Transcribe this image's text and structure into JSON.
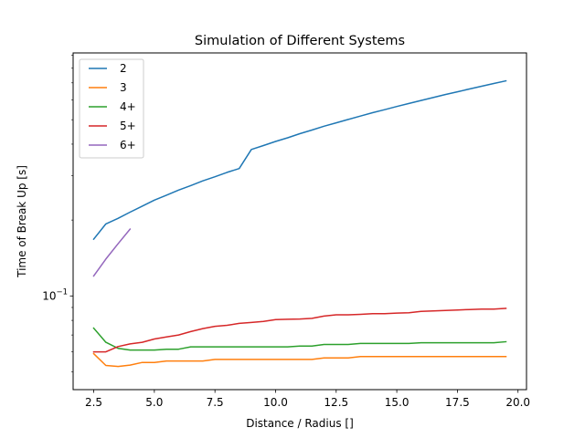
{
  "chart_data": {
    "type": "line",
    "title": "Simulation of Different Systems",
    "xlabel": "Distance / Radius []",
    "ylabel": "Time of Break Up [s]",
    "xlim": [
      1.65,
      20.35
    ],
    "ylim": [
      0.0425,
      0.92
    ],
    "yscale": "log",
    "grid": false,
    "legend_position": "top-left",
    "xticks": [
      2.5,
      5.0,
      7.5,
      10.0,
      12.5,
      15.0,
      17.5,
      20.0
    ],
    "xtick_labels": [
      "2.5",
      "5.0",
      "7.5",
      "10.0",
      "12.5",
      "15.0",
      "17.5",
      "20.0"
    ],
    "yticks_major": [
      {
        "value": 0.1,
        "base": "10",
        "exponent": "−1"
      }
    ],
    "yticks_minor": [
      0.05,
      0.06,
      0.07,
      0.08,
      0.09,
      0.2,
      0.3,
      0.4,
      0.5,
      0.6,
      0.7,
      0.8,
      0.9
    ],
    "series": [
      {
        "name": "2",
        "color": "#1f77b4",
        "x": [
          2.5,
          3.0,
          3.5,
          4.0,
          4.5,
          5.0,
          5.5,
          6.0,
          6.5,
          7.0,
          7.5,
          8.0,
          8.5,
          9.0,
          9.5,
          10.0,
          10.5,
          11.0,
          11.5,
          12.0,
          12.5,
          13.0,
          13.5,
          14.0,
          14.5,
          15.0,
          15.5,
          16.0,
          16.5,
          17.0,
          17.5,
          18.0,
          18.5,
          19.0,
          19.5
        ],
        "y": [
          0.168,
          0.193,
          0.203,
          0.215,
          0.227,
          0.24,
          0.251,
          0.263,
          0.274,
          0.286,
          0.297,
          0.309,
          0.32,
          0.381,
          0.395,
          0.41,
          0.424,
          0.44,
          0.455,
          0.471,
          0.486,
          0.501,
          0.517,
          0.533,
          0.548,
          0.564,
          0.58,
          0.596,
          0.612,
          0.629,
          0.645,
          0.662,
          0.679,
          0.696,
          0.713
        ]
      },
      {
        "name": "3",
        "color": "#ff7f0e",
        "x": [
          2.5,
          3.0,
          3.5,
          4.0,
          4.5,
          5.0,
          5.5,
          6.0,
          6.5,
          7.0,
          7.5,
          8.0,
          8.5,
          9.0,
          9.5,
          10.0,
          10.5,
          11.0,
          11.5,
          12.0,
          12.5,
          13.0,
          13.5,
          14.0,
          14.5,
          15.0,
          15.5,
          16.0,
          16.5,
          17.0,
          17.5,
          18.0,
          18.5,
          19.0,
          19.5
        ],
        "y": [
          0.059,
          0.053,
          0.0525,
          0.0532,
          0.0545,
          0.0545,
          0.0552,
          0.0552,
          0.0552,
          0.0552,
          0.056,
          0.056,
          0.056,
          0.056,
          0.056,
          0.056,
          0.056,
          0.056,
          0.056,
          0.0568,
          0.0568,
          0.0568,
          0.0575,
          0.0575,
          0.0575,
          0.0575,
          0.0575,
          0.0575,
          0.0575,
          0.0575,
          0.0575,
          0.0575,
          0.0575,
          0.0575,
          0.0575
        ]
      },
      {
        "name": "4+",
        "color": "#2ca02c",
        "x": [
          2.5,
          3.0,
          3.5,
          4.0,
          4.5,
          5.0,
          5.5,
          6.0,
          6.5,
          7.0,
          7.5,
          8.0,
          8.5,
          9.0,
          9.5,
          10.0,
          10.5,
          11.0,
          11.5,
          12.0,
          12.5,
          13.0,
          13.5,
          14.0,
          14.5,
          15.0,
          15.5,
          16.0,
          16.5,
          17.0,
          17.5,
          18.0,
          18.5,
          19.0,
          19.5
        ],
        "y": [
          0.0745,
          0.0655,
          0.062,
          0.061,
          0.061,
          0.061,
          0.0615,
          0.0615,
          0.0628,
          0.0628,
          0.0628,
          0.0628,
          0.0628,
          0.0628,
          0.0628,
          0.0628,
          0.0628,
          0.0633,
          0.0633,
          0.0642,
          0.0642,
          0.0642,
          0.0648,
          0.0648,
          0.0648,
          0.0648,
          0.0648,
          0.0652,
          0.0652,
          0.0652,
          0.0652,
          0.0652,
          0.0652,
          0.0652,
          0.0658
        ]
      },
      {
        "name": "5+",
        "color": "#d62728",
        "x": [
          2.5,
          3.0,
          3.5,
          4.0,
          4.5,
          5.0,
          5.5,
          6.0,
          6.5,
          7.0,
          7.5,
          8.0,
          8.5,
          9.0,
          9.5,
          10.0,
          10.5,
          11.0,
          11.5,
          12.0,
          12.5,
          13.0,
          13.5,
          14.0,
          14.5,
          15.0,
          15.5,
          16.0,
          16.5,
          17.0,
          17.5,
          18.0,
          18.5,
          19.0,
          19.5
        ],
        "y": [
          0.06,
          0.06,
          0.063,
          0.0645,
          0.0655,
          0.0675,
          0.0688,
          0.07,
          0.0722,
          0.0742,
          0.0758,
          0.0765,
          0.0778,
          0.0785,
          0.0792,
          0.0805,
          0.0808,
          0.081,
          0.0815,
          0.0832,
          0.0842,
          0.0842,
          0.0845,
          0.085,
          0.085,
          0.0855,
          0.0858,
          0.0868,
          0.0872,
          0.0876,
          0.088,
          0.0883,
          0.0886,
          0.0886,
          0.0893
        ]
      },
      {
        "name": "6+",
        "color": "#9467bd",
        "x": [
          2.5,
          3.0,
          3.5,
          4.0
        ],
        "y": [
          0.12,
          0.14,
          0.161,
          0.184
        ]
      }
    ]
  }
}
